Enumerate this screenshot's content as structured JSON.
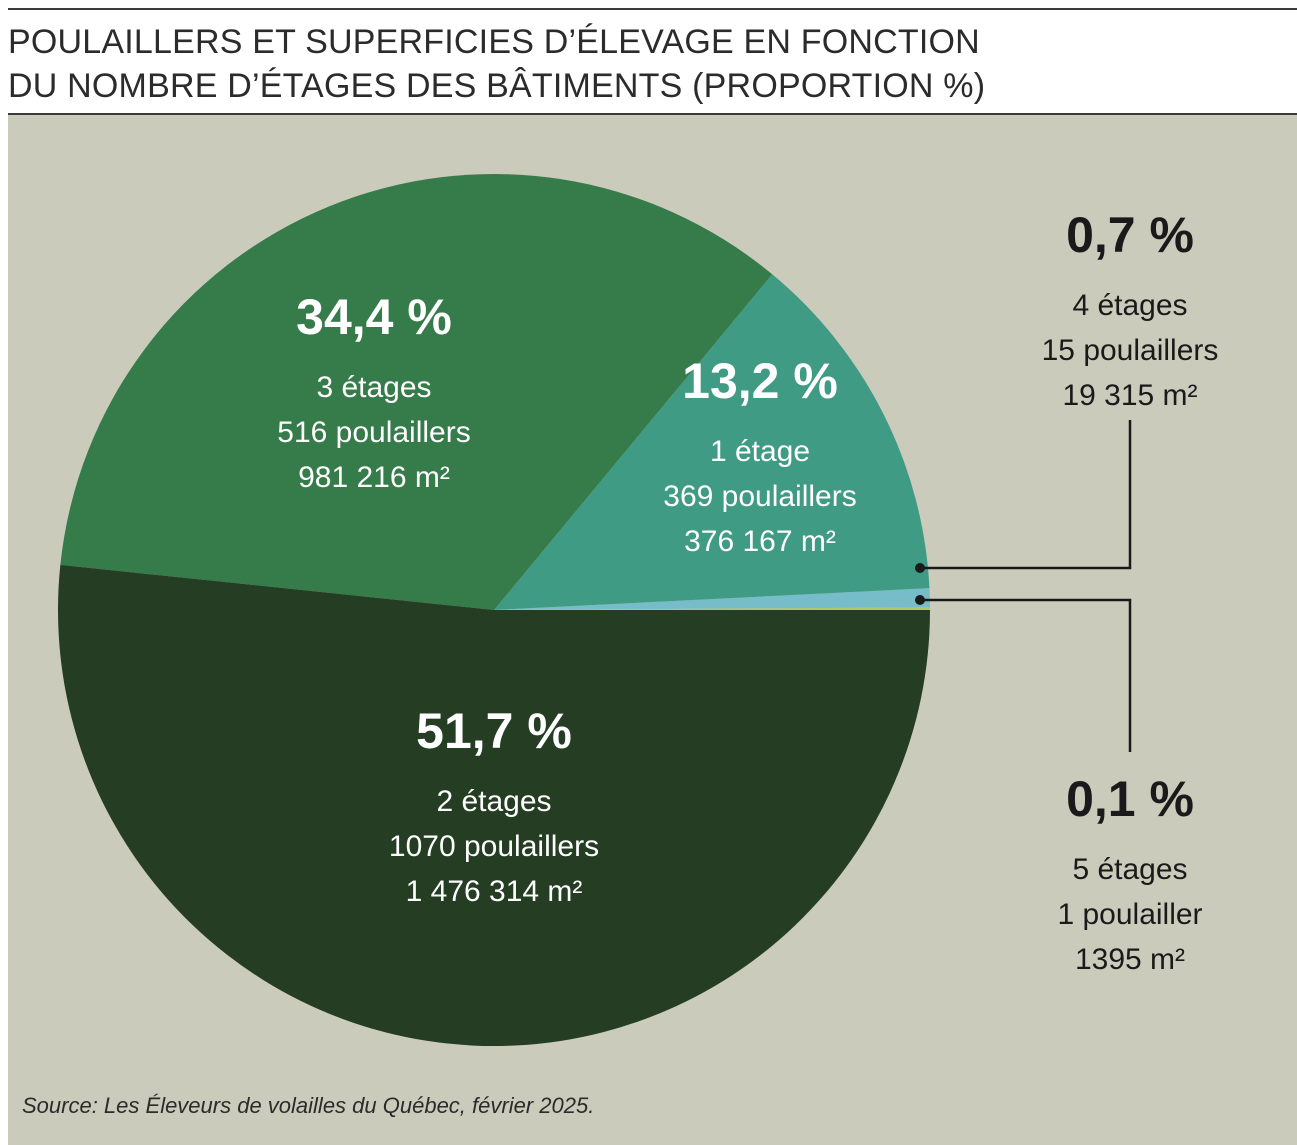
{
  "header": {
    "title_line1": "POULAILLERS ET SUPERFICIES D’ÉLEVAGE EN FONCTION",
    "title_line2": "DU NOMBRE D’ÉTAGES DES BÂTIMENTS (PROPORTION %)"
  },
  "source": "Source: Les Éleveurs de volailles du Québec, février 2025.",
  "chart_data": {
    "type": "pie",
    "title": "POULAILLERS ET SUPERFICIES D’ÉLEVAGE EN FONCTION DU NOMBRE D’ÉTAGES DES BÂTIMENTS (PROPORTION %)",
    "start_angle_deg": 0,
    "direction": "counterclockwise",
    "slices": [
      {
        "id": "5",
        "value": 0.1,
        "percent_label": "0,1 %",
        "floors": "5 étages",
        "buildings": "1 poulailler",
        "area": "1395 m²",
        "color": "#b1ca60",
        "label_mode": "callout"
      },
      {
        "id": "4",
        "value": 0.7,
        "percent_label": "0,7 %",
        "floors": "4 étages",
        "buildings": "15 poulaillers",
        "area": "19 315 m²",
        "color": "#76bcc9",
        "label_mode": "callout"
      },
      {
        "id": "1",
        "value": 13.2,
        "percent_label": "13,2 %",
        "floors": "1 étage",
        "buildings": "369 poulaillers",
        "area": "376 167 m²",
        "color": "#409b85",
        "label_mode": "inside"
      },
      {
        "id": "3",
        "value": 34.4,
        "percent_label": "34,4 %",
        "floors": "3 étages",
        "buildings": "516 poulaillers",
        "area": "981 216 m²",
        "color": "#367b4a",
        "label_mode": "inside"
      },
      {
        "id": "2",
        "value": 51.7,
        "percent_label": "51,7 %",
        "floors": "2 étages",
        "buildings": "1070 poulaillers",
        "area": "1 476 314 m²",
        "color": "#243d23",
        "label_mode": "inside"
      }
    ]
  }
}
